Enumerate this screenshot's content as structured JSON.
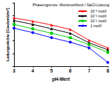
{
  "chart_data": {
    "type": "line",
    "title": "Phasengrenze: Montmorillonit / NaCl-Lösung",
    "x_label": "pH-Wert",
    "y_label": "Ladungsdichte [Coulomb/m²]",
    "x": [
      3,
      4,
      5,
      6,
      7,
      8
    ],
    "series": [
      {
        "name": "10⁻³ mol/l",
        "color": "#ff0000",
        "marker": "triangle",
        "values": [
          7.6,
          7.1,
          6.5,
          5.8,
          4.1,
          2.9
        ]
      },
      {
        "name": "10⁻² mol/l",
        "color": "#000000",
        "marker": "triangle",
        "values": [
          7.2,
          6.6,
          5.9,
          5.2,
          3.7,
          2.6
        ]
      },
      {
        "name": "10⁻¹ mol/l",
        "color": "#00cc00",
        "marker": "rect",
        "values": [
          6.6,
          5.9,
          5.2,
          4.5,
          3.4,
          2.2
        ]
      },
      {
        "name": "1 mol/l",
        "color": "#0000ff",
        "marker": "circle",
        "values": [
          6.0,
          5.3,
          4.5,
          3.8,
          2.9,
          0.6
        ]
      }
    ],
    "xlim": [
      3,
      8
    ],
    "xticks": [
      3,
      4,
      5,
      6,
      7,
      8
    ],
    "ylim": [
      0,
      10
    ],
    "yticks": [
      0,
      2,
      4,
      6,
      8,
      10
    ],
    "grid": false,
    "legend": "upper right",
    "tick_labels": "x"
  }
}
